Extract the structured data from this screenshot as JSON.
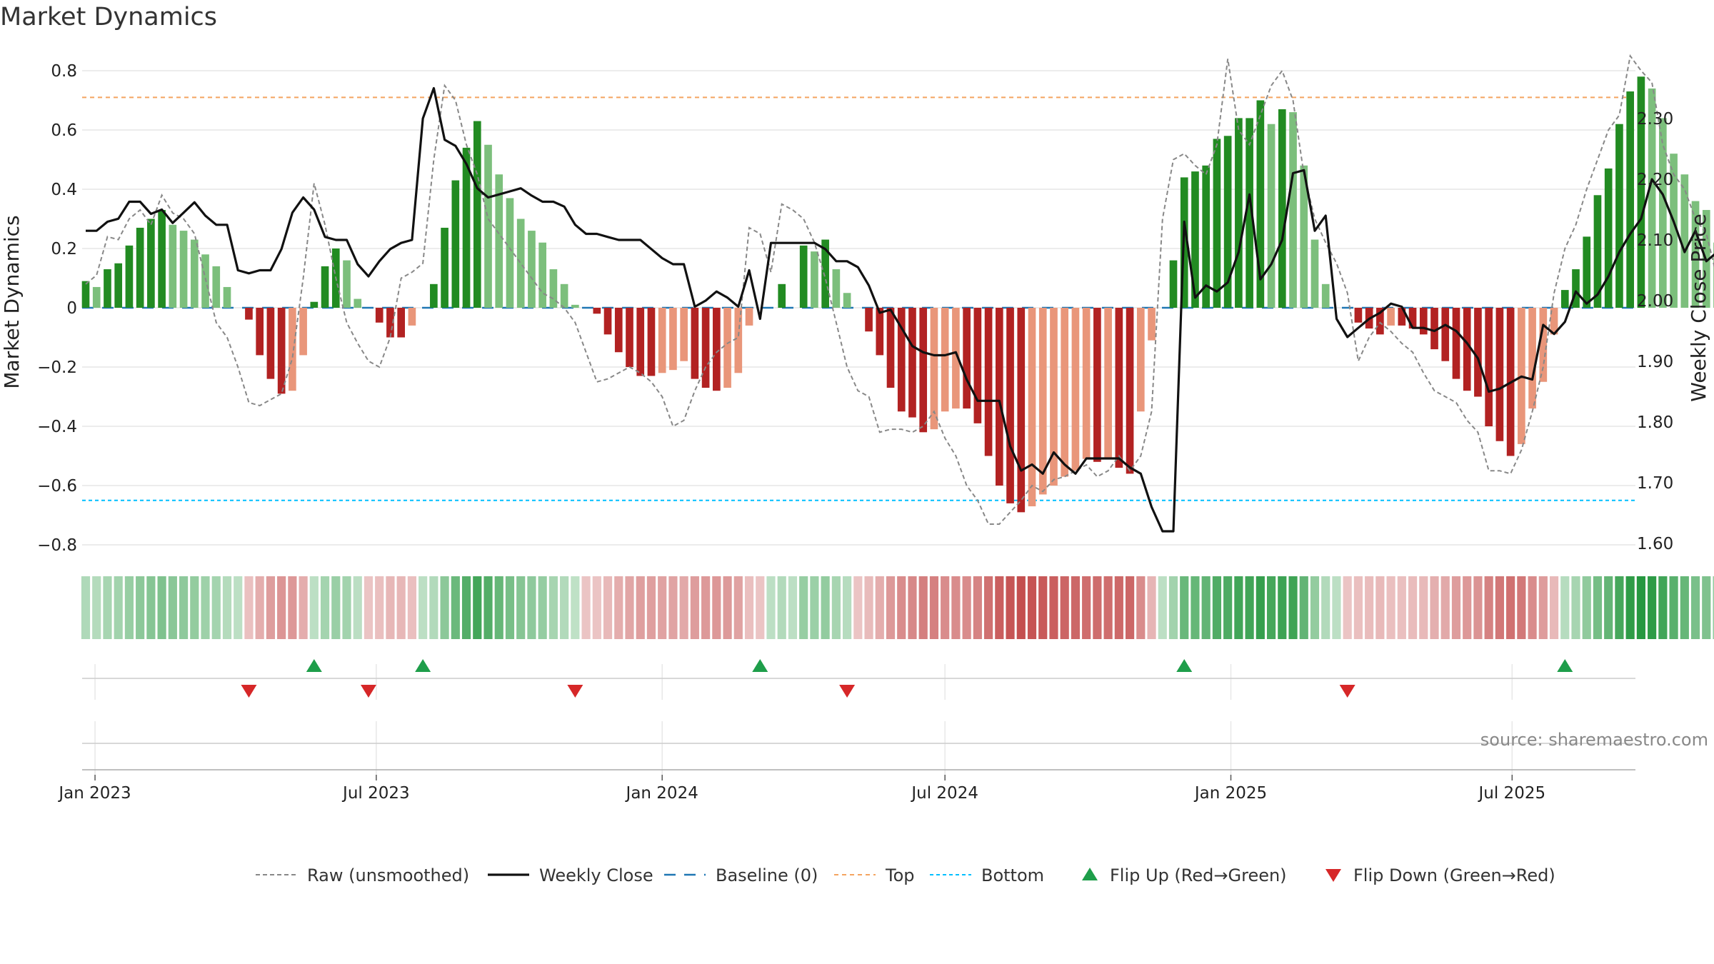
{
  "chart_data": {
    "type": "bar",
    "title": "Market Dynamics",
    "ylabel_left": "Market Dynamics",
    "ylabel_right": "Weekly Close Price",
    "source": "source: sharemaestro.com",
    "ylim_left": [
      -0.86,
      0.86
    ],
    "ylim_right": [
      1.59,
      2.37
    ],
    "yticks_left": [
      {
        "v": 0.8,
        "label": "0.8"
      },
      {
        "v": 0.6,
        "label": "0.6"
      },
      {
        "v": 0.4,
        "label": "0.4"
      },
      {
        "v": 0.2,
        "label": "0.2"
      },
      {
        "v": 0,
        "label": "0"
      },
      {
        "v": -0.2,
        "label": "−0.2"
      },
      {
        "v": -0.4,
        "label": "−0.4"
      },
      {
        "v": -0.6,
        "label": "−0.6"
      },
      {
        "v": -0.8,
        "label": "−0.8"
      }
    ],
    "yticks_right": [
      {
        "v": 2.3,
        "label": "2.30"
      },
      {
        "v": 2.2,
        "label": "2.20"
      },
      {
        "v": 2.1,
        "label": "2.10"
      },
      {
        "v": 2.0,
        "label": "2.00"
      },
      {
        "v": 1.9,
        "label": "1.90"
      },
      {
        "v": 1.8,
        "label": "1.80"
      },
      {
        "v": 1.7,
        "label": "1.70"
      },
      {
        "v": 1.6,
        "label": "1.60"
      }
    ],
    "x_start": "2022-12-26",
    "x_end": "2025-09-22",
    "x_ticks": [
      {
        "date": "2023-01-01",
        "label": "Jan 2023"
      },
      {
        "date": "2023-07-01",
        "label": "Jul 2023"
      },
      {
        "date": "2024-01-01",
        "label": "Jan 2024"
      },
      {
        "date": "2024-07-01",
        "label": "Jul 2024"
      },
      {
        "date": "2025-01-01",
        "label": "Jan 2025"
      },
      {
        "date": "2025-07-01",
        "label": "Jul 2025"
      }
    ],
    "top_threshold": 0.71,
    "bottom_threshold": -0.65,
    "baseline": 0,
    "weeks_start": "2022-12-26",
    "market_dynamics": [
      0.09,
      0.07,
      0.13,
      0.15,
      0.21,
      0.27,
      0.3,
      0.33,
      0.28,
      0.26,
      0.23,
      0.18,
      0.14,
      0.07,
      0,
      -0.04,
      -0.16,
      -0.24,
      -0.29,
      -0.28,
      -0.16,
      0.02,
      0.14,
      0.2,
      0.16,
      0.03,
      0,
      -0.05,
      -0.1,
      -0.1,
      -0.06,
      0,
      0.08,
      0.27,
      0.43,
      0.54,
      0.63,
      0.55,
      0.45,
      0.37,
      0.3,
      0.26,
      0.22,
      0.13,
      0.08,
      0.01,
      0,
      -0.02,
      -0.09,
      -0.15,
      -0.2,
      -0.23,
      -0.23,
      -0.22,
      -0.21,
      -0.18,
      -0.24,
      -0.27,
      -0.28,
      -0.27,
      -0.22,
      -0.06,
      0,
      0,
      0.08,
      0,
      0.21,
      0.19,
      0.23,
      0.13,
      0.05,
      0,
      -0.08,
      -0.16,
      -0.27,
      -0.35,
      -0.37,
      -0.42,
      -0.41,
      -0.35,
      -0.34,
      -0.34,
      -0.39,
      -0.5,
      -0.6,
      -0.66,
      -0.69,
      -0.67,
      -0.63,
      -0.6,
      -0.57,
      -0.55,
      -0.51,
      -0.52,
      -0.51,
      -0.54,
      -0.56,
      -0.35,
      -0.11,
      0,
      0.16,
      0.44,
      0.46,
      0.48,
      0.57,
      0.58,
      0.64,
      0.64,
      0.7,
      0.62,
      0.67,
      0.66,
      0.48,
      0.23,
      0.08,
      0,
      0,
      -0.05,
      -0.07,
      -0.09,
      -0.06,
      -0.06,
      -0.07,
      -0.09,
      -0.14,
      -0.18,
      -0.24,
      -0.28,
      -0.3,
      -0.4,
      -0.45,
      -0.5,
      -0.46,
      -0.34,
      -0.25,
      -0.09,
      0.06,
      0.13,
      0.24,
      0.38,
      0.47,
      0.62,
      0.73,
      0.78,
      0.74,
      0.64,
      0.52,
      0.45,
      0.36,
      0.33,
      0.22,
      0.07
    ],
    "raw_unsmoothed": [
      0.08,
      0.11,
      0.24,
      0.23,
      0.3,
      0.33,
      0.28,
      0.38,
      0.32,
      0.3,
      0.25,
      0.1,
      -0.05,
      -0.1,
      -0.2,
      -0.32,
      -0.33,
      -0.31,
      -0.29,
      -0.17,
      0.1,
      0.42,
      0.28,
      0.1,
      -0.05,
      -0.12,
      -0.18,
      -0.2,
      -0.1,
      0.1,
      0.12,
      0.15,
      0.5,
      0.75,
      0.7,
      0.55,
      0.45,
      0.3,
      0.25,
      0.2,
      0.15,
      0.1,
      0.05,
      0.03,
      0,
      -0.05,
      -0.15,
      -0.25,
      -0.24,
      -0.22,
      -0.2,
      -0.22,
      -0.25,
      -0.3,
      -0.4,
      -0.38,
      -0.28,
      -0.2,
      -0.15,
      -0.12,
      -0.1,
      0.27,
      0.25,
      0.12,
      0.35,
      0.33,
      0.3,
      0.22,
      0.1,
      -0.05,
      -0.2,
      -0.28,
      -0.3,
      -0.42,
      -0.41,
      -0.41,
      -0.42,
      -0.4,
      -0.35,
      -0.44,
      -0.5,
      -0.6,
      -0.65,
      -0.73,
      -0.73,
      -0.69,
      -0.65,
      -0.6,
      -0.62,
      -0.58,
      -0.57,
      -0.55,
      -0.53,
      -0.57,
      -0.55,
      -0.5,
      -0.55,
      -0.5,
      -0.35,
      0.3,
      0.5,
      0.52,
      0.48,
      0.45,
      0.55,
      0.84,
      0.6,
      0.55,
      0.65,
      0.75,
      0.8,
      0.7,
      0.45,
      0.3,
      0.22,
      0.15,
      0.05,
      -0.18,
      -0.1,
      -0.05,
      -0.08,
      -0.12,
      -0.15,
      -0.22,
      -0.28,
      -0.3,
      -0.32,
      -0.38,
      -0.42,
      -0.55,
      -0.55,
      -0.56,
      -0.48,
      -0.35,
      -0.2,
      0.05,
      0.2,
      0.28,
      0.4,
      0.5,
      0.6,
      0.65,
      0.85,
      0.8,
      0.76,
      0.55,
      0.45,
      0.4,
      0.3,
      0.25,
      0.1,
      -0.1,
      -0.02
    ],
    "weekly_close": [
      2.115,
      2.115,
      2.13,
      2.135,
      2.163,
      2.163,
      2.143,
      2.15,
      2.128,
      2.145,
      2.162,
      2.14,
      2.125,
      2.125,
      2.05,
      2.045,
      2.05,
      2.05,
      2.085,
      2.145,
      2.17,
      2.15,
      2.105,
      2.1,
      2.1,
      2.06,
      2.04,
      2.065,
      2.085,
      2.095,
      2.1,
      2.3,
      2.35,
      2.265,
      2.255,
      2.225,
      2.185,
      2.17,
      2.175,
      2.18,
      2.185,
      2.173,
      2.163,
      2.163,
      2.155,
      2.125,
      2.11,
      2.11,
      2.105,
      2.1,
      2.1,
      2.1,
      2.085,
      2.07,
      2.06,
      2.06,
      1.99,
      2.0,
      2.015,
      2.005,
      1.99,
      2.05,
      1.97,
      2.095,
      2.095,
      2.095,
      2.095,
      2.095,
      2.085,
      2.065,
      2.065,
      2.055,
      2.025,
      1.98,
      1.985,
      1.955,
      1.925,
      1.915,
      1.91,
      1.91,
      1.915,
      1.87,
      1.835,
      1.835,
      1.835,
      1.76,
      1.72,
      1.73,
      1.715,
      1.75,
      1.73,
      1.715,
      1.74,
      1.74,
      1.74,
      1.74,
      1.725,
      1.715,
      1.66,
      1.62,
      1.62,
      2.13,
      2.005,
      2.025,
      2.015,
      2.03,
      2.08,
      2.175,
      2.035,
      2.06,
      2.1,
      2.21,
      2.215,
      2.115,
      2.14,
      1.97,
      1.94,
      1.955,
      1.97,
      1.98,
      1.995,
      1.99,
      1.955,
      1.955,
      1.95,
      1.96,
      1.95,
      1.93,
      1.905,
      1.85,
      1.855,
      1.865,
      1.875,
      1.87,
      1.96,
      1.945,
      1.965,
      2.015,
      1.995,
      2.01,
      2.04,
      2.08,
      2.11,
      2.135,
      2.2,
      2.175,
      2.13,
      2.08,
      2.115,
      2.065,
      2.08,
      2.08,
      2.07,
      2.05,
      2.07
    ],
    "flip_up_weeks": [
      21,
      31,
      62,
      101,
      136
    ],
    "flip_down_weeks": [
      15,
      26,
      45,
      70,
      116
    ],
    "colors": {
      "strong_green": "#228b22",
      "light_green": "#7cbf7c",
      "strong_red": "#b22222",
      "light_red": "#e9967a",
      "top_line": "#f4a460",
      "bottom_line": "#00bfff",
      "baseline": "#1f77b4",
      "raw_line": "#888888",
      "close_line": "#111111",
      "flip_up": "#1e9e4a",
      "flip_down": "#d62728"
    },
    "legend": [
      {
        "key": "raw",
        "label": "Raw (unsmoothed)"
      },
      {
        "key": "close",
        "label": "Weekly Close"
      },
      {
        "key": "baseline",
        "label": "Baseline (0)"
      },
      {
        "key": "top",
        "label": "Top"
      },
      {
        "key": "bottom",
        "label": "Bottom"
      },
      {
        "key": "flip_up",
        "label": "Flip Up (Red→Green)"
      },
      {
        "key": "flip_down",
        "label": "Flip Down (Green→Red)"
      }
    ]
  }
}
